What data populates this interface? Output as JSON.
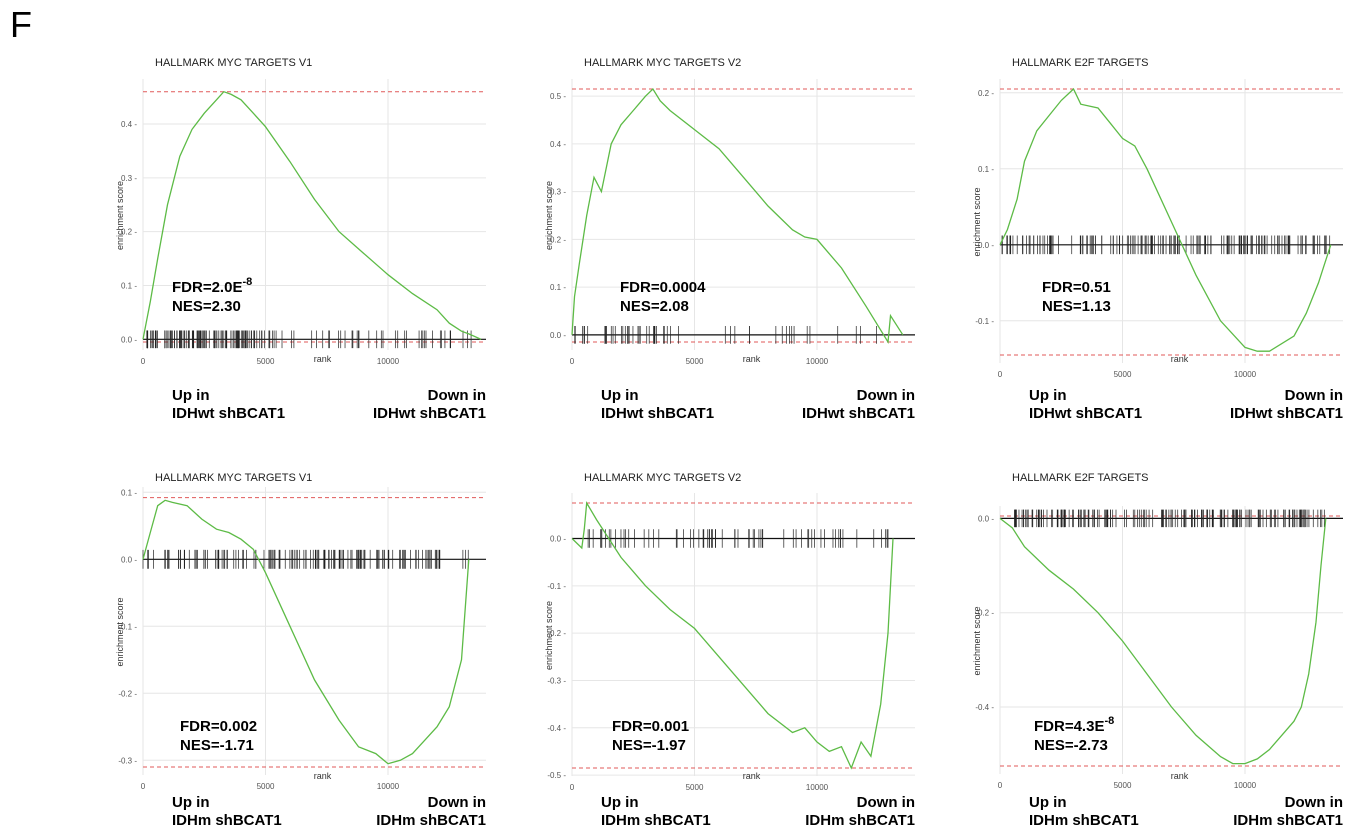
{
  "figure": {
    "panel_letter": "F"
  },
  "chart_data": [
    {
      "type": "line",
      "title": "HALLMARK MYC TARGETS V1",
      "xlabel": "rank",
      "ylabel": "enrichment score",
      "xlim": [
        0,
        14000
      ],
      "ylim": [
        -0.005,
        0.465
      ],
      "xticks": [
        0,
        5000,
        10000
      ],
      "yticks": [
        0.0,
        0.1,
        0.2,
        0.3,
        0.4
      ],
      "ytick_labels": [
        "0.0",
        "0.1",
        "0.2",
        "0.3",
        "0.4"
      ],
      "max_es": 0.46,
      "min_es": -0.005,
      "curve": {
        "x": [
          0,
          300,
          600,
          1000,
          1500,
          2000,
          2500,
          3000,
          3300,
          3600,
          4000,
          4500,
          5000,
          6000,
          7000,
          8000,
          9000,
          10000,
          11000,
          12000,
          12500,
          13000,
          13300,
          13800
        ],
        "y": [
          0,
          0.07,
          0.15,
          0.25,
          0.34,
          0.39,
          0.42,
          0.445,
          0.46,
          0.455,
          0.445,
          0.42,
          0.395,
          0.33,
          0.26,
          0.2,
          0.16,
          0.12,
          0.085,
          0.055,
          0.03,
          0.015,
          0.01,
          0.0
        ]
      },
      "ticks": {
        "start": 0,
        "end": 13500,
        "count": 150,
        "dense_end": 5000,
        "dense_frac": 0.55,
        "seed": 11
      },
      "fdr": "FDR=2.0E",
      "fdr_sup": "-8",
      "nes": "NES=2.30",
      "left_label_1": "Up in",
      "left_label_2": "IDHwt shBCAT1",
      "right_label_1": "Down in",
      "right_label_2": "IDHwt shBCAT1"
    },
    {
      "type": "line",
      "title": "HALLMARK MYC TARGETS V2",
      "xlabel": "rank",
      "ylabel": "enrichment score",
      "xlim": [
        0,
        14000
      ],
      "ylim": [
        -0.015,
        0.515
      ],
      "xticks": [
        0,
        5000,
        10000
      ],
      "yticks": [
        0.0,
        0.1,
        0.2,
        0.3,
        0.4,
        0.5
      ],
      "ytick_labels": [
        "0.0",
        "0.1",
        "0.2",
        "0.3",
        "0.4",
        "0.5"
      ],
      "max_es": 0.515,
      "min_es": -0.015,
      "curve": {
        "x": [
          0,
          100,
          300,
          600,
          900,
          1200,
          1600,
          2000,
          2500,
          3000,
          3300,
          3600,
          4000,
          5000,
          6000,
          7000,
          8000,
          9000,
          9500,
          10000,
          11000,
          12000,
          12900,
          13000,
          13500
        ],
        "y": [
          0,
          0.08,
          0.15,
          0.25,
          0.33,
          0.3,
          0.4,
          0.44,
          0.47,
          0.5,
          0.515,
          0.49,
          0.47,
          0.43,
          0.39,
          0.33,
          0.27,
          0.22,
          0.205,
          0.2,
          0.14,
          0.06,
          -0.015,
          0.04,
          0.0
        ]
      },
      "ticks": {
        "start": 0,
        "end": 13000,
        "count": 52,
        "dense_end": 4000,
        "dense_frac": 0.5,
        "seed": 23
      },
      "fdr": "FDR=0.0004",
      "fdr_sup": "",
      "nes": "NES=2.08",
      "left_label_1": "Up in",
      "left_label_2": "IDHwt shBCAT1",
      "right_label_1": "Down in",
      "right_label_2": "IDHwt shBCAT1"
    },
    {
      "type": "line",
      "title": "HALLMARK E2F TARGETS",
      "xlabel": "rank",
      "ylabel": "enrichment score",
      "xlim": [
        0,
        14000
      ],
      "ylim": [
        -0.145,
        0.205
      ],
      "xticks": [
        0,
        5000,
        10000
      ],
      "yticks": [
        -0.1,
        0.0,
        0.1,
        0.2
      ],
      "ytick_labels": [
        "-0.1",
        "0.0",
        "0.1",
        "0.2"
      ],
      "max_es": 0.205,
      "min_es": -0.145,
      "curve": {
        "x": [
          0,
          300,
          700,
          1000,
          1500,
          2000,
          2500,
          3000,
          3300,
          4000,
          4500,
          5000,
          5500,
          6000,
          7000,
          8000,
          9000,
          10000,
          10500,
          11000,
          12000,
          12500,
          13000,
          13200,
          13500
        ],
        "y": [
          0,
          0.02,
          0.06,
          0.11,
          0.15,
          0.17,
          0.19,
          0.205,
          0.185,
          0.18,
          0.16,
          0.14,
          0.13,
          0.1,
          0.03,
          -0.04,
          -0.1,
          -0.135,
          -0.14,
          -0.14,
          -0.12,
          -0.09,
          -0.05,
          -0.03,
          0.0
        ]
      },
      "ticks": {
        "start": 0,
        "end": 13500,
        "count": 160,
        "dense_end": 13500,
        "dense_frac": 0.0,
        "seed": 37
      },
      "fdr": "FDR=0.51",
      "fdr_sup": "",
      "nes": "NES=1.13",
      "left_label_1": "Up in",
      "left_label_2": "IDHwt shBCAT1",
      "right_label_1": "Down in",
      "right_label_2": "IDHwt shBCAT1"
    },
    {
      "type": "line",
      "title": "HALLMARK MYC TARGETS V1",
      "xlabel": "rank",
      "ylabel": "enrichment score",
      "xlim": [
        0,
        14000
      ],
      "ylim": [
        -0.31,
        0.093
      ],
      "xticks": [
        0,
        5000,
        10000
      ],
      "yticks": [
        -0.3,
        -0.2,
        -0.1,
        0.0,
        0.1
      ],
      "ytick_labels": [
        "-0.3",
        "-0.2",
        "-0.1",
        "0.0",
        "0.1"
      ],
      "max_es": 0.092,
      "min_es": -0.31,
      "curve": {
        "x": [
          0,
          300,
          600,
          900,
          1200,
          1800,
          2400,
          3000,
          3500,
          4000,
          4500,
          5000,
          6000,
          7000,
          8000,
          8800,
          9500,
          10000,
          10500,
          11000,
          11500,
          12000,
          12500,
          13000,
          13300
        ],
        "y": [
          0,
          0.04,
          0.08,
          0.088,
          0.085,
          0.08,
          0.06,
          0.045,
          0.04,
          0.03,
          0.015,
          -0.02,
          -0.1,
          -0.18,
          -0.24,
          -0.28,
          -0.29,
          -0.305,
          -0.3,
          -0.29,
          -0.27,
          -0.25,
          -0.22,
          -0.15,
          0.0
        ]
      },
      "ticks": {
        "start": 0,
        "end": 13300,
        "count": 140,
        "dense_end": 13300,
        "dense_frac": 0.0,
        "seed": 41
      },
      "fdr": "FDR=0.002",
      "fdr_sup": "",
      "nes": "NES=-1.71",
      "left_label_1": "Up in",
      "left_label_2": "IDHm shBCAT1",
      "right_label_1": "Down in",
      "right_label_2": "IDHm shBCAT1"
    },
    {
      "type": "line",
      "title": "HALLMARK MYC TARGETS V2",
      "xlabel": "rank",
      "ylabel": "enrichment score",
      "xlim": [
        0,
        14000
      ],
      "ylim": [
        -0.485,
        0.075
      ],
      "xticks": [
        0,
        5000,
        10000
      ],
      "yticks": [
        -0.5,
        -0.4,
        -0.3,
        -0.2,
        -0.1,
        0.0
      ],
      "ytick_labels": [
        "-0.5",
        "-0.4",
        "-0.3",
        "-0.2",
        "-0.1",
        "0.0"
      ],
      "max_es": 0.075,
      "min_es": -0.485,
      "curve": {
        "x": [
          0,
          400,
          500,
          600,
          1000,
          2000,
          3000,
          4000,
          5000,
          6000,
          7000,
          8000,
          9000,
          9500,
          10000,
          10500,
          11000,
          11400,
          11800,
          12200,
          12600,
          12900,
          13100
        ],
        "y": [
          0,
          -0.02,
          0.02,
          0.075,
          0.04,
          -0.04,
          -0.1,
          -0.15,
          -0.19,
          -0.25,
          -0.31,
          -0.37,
          -0.41,
          -0.4,
          -0.43,
          -0.45,
          -0.44,
          -0.485,
          -0.43,
          -0.46,
          -0.35,
          -0.2,
          0.0
        ]
      },
      "ticks": {
        "start": 500,
        "end": 13000,
        "count": 70,
        "dense_end": 13000,
        "dense_frac": 0.0,
        "seed": 53
      },
      "fdr": "FDR=0.001",
      "fdr_sup": "",
      "nes": "NES=-1.97",
      "left_label_1": "Up in",
      "left_label_2": "IDHm shBCAT1",
      "right_label_1": "Down in",
      "right_label_2": "IDHm shBCAT1"
    },
    {
      "type": "line",
      "title": "HALLMARK E2F TARGETS",
      "xlabel": "rank",
      "ylabel": "enrichment score",
      "xlim": [
        0,
        14000
      ],
      "ylim": [
        -0.525,
        0.005
      ],
      "xticks": [
        0,
        5000,
        10000
      ],
      "yticks": [
        -0.4,
        -0.2,
        0.0
      ],
      "ytick_labels": [
        "-0.4",
        "-0.2",
        "0.0"
      ],
      "max_es": 0.005,
      "min_es": -0.525,
      "curve": {
        "x": [
          0,
          500,
          1000,
          2000,
          3000,
          4000,
          5000,
          6000,
          7000,
          8000,
          9000,
          9500,
          10000,
          10500,
          11000,
          11500,
          12000,
          12300,
          12600,
          12900,
          13100,
          13300
        ],
        "y": [
          0,
          -0.02,
          -0.06,
          -0.11,
          -0.15,
          -0.2,
          -0.26,
          -0.33,
          -0.4,
          -0.46,
          -0.505,
          -0.52,
          -0.52,
          -0.51,
          -0.49,
          -0.46,
          -0.43,
          -0.4,
          -0.33,
          -0.22,
          -0.1,
          0.0
        ]
      },
      "ticks": {
        "start": 500,
        "end": 13300,
        "count": 180,
        "dense_end": 13300,
        "dense_frac": 0.0,
        "seed": 67
      },
      "fdr": "FDR=4.3E",
      "fdr_sup": "-8",
      "nes": "NES=-2.73",
      "left_label_1": "Up in",
      "left_label_2": "IDHm shBCAT1",
      "right_label_1": "Down in",
      "right_label_2": "IDHm shBCAT1"
    }
  ],
  "colors": {
    "curve": "#5dbb46",
    "es_line": "#e05a5a",
    "tick": "#222222",
    "grid": "#e6e6e6",
    "zero": "#111111"
  }
}
